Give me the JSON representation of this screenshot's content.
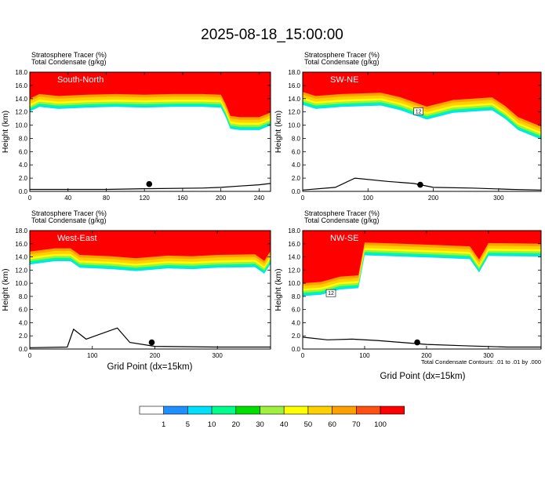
{
  "title": "2025-08-18_15:00:00",
  "panel_header": {
    "line1_name": "Stratosphere Tracer",
    "line1_unit": "(%)",
    "line2_name": "Total Condensate",
    "line2_unit": "(g/kg)"
  },
  "ylabel": "Height (km)",
  "xlabel": "Grid Point (dx=15km)",
  "contour_note": "Total Condensate Contours: .01 to .01 by .000",
  "colorbar": {
    "labels": [
      "1",
      "5",
      "10",
      "20",
      "30",
      "40",
      "50",
      "60",
      "70",
      "100"
    ],
    "colors": [
      "#ffffff",
      "#1e90ff",
      "#00e0ff",
      "#00ff8a",
      "#00e000",
      "#a0f040",
      "#ffff00",
      "#ffd000",
      "#ffa000",
      "#ff5010",
      "#ff0000"
    ]
  },
  "colors": {
    "tracer_high": "#ff0000",
    "terrain_line": "#000000",
    "site_marker": "#000000"
  },
  "chart_data": [
    {
      "type": "heatmap",
      "label": "South-North",
      "xlim": [
        0,
        252
      ],
      "ylim": [
        0,
        18
      ],
      "x_ticks": [
        0,
        40,
        80,
        120,
        160,
        200,
        240
      ],
      "y_ticks": [
        "0.0",
        "2.0",
        "4.0",
        "6.0",
        "8.0",
        "10.0",
        "12.0",
        "14.0",
        "16.0",
        "18.0"
      ],
      "tracer_base_km": [
        [
          0,
          13.6
        ],
        [
          10,
          14.3
        ],
        [
          30,
          14.0
        ],
        [
          60,
          14.2
        ],
        [
          90,
          14.3
        ],
        [
          120,
          14.2
        ],
        [
          150,
          14.3
        ],
        [
          180,
          14.3
        ],
        [
          200,
          14.2
        ],
        [
          205,
          12.8
        ],
        [
          210,
          11.0
        ],
        [
          220,
          10.8
        ],
        [
          240,
          10.8
        ],
        [
          252,
          11.5
        ]
      ],
      "terrain_km": [
        [
          0,
          0.3
        ],
        [
          20,
          0.3
        ],
        [
          40,
          0.3
        ],
        [
          80,
          0.3
        ],
        [
          120,
          0.4
        ],
        [
          180,
          0.5
        ],
        [
          200,
          0.6
        ],
        [
          220,
          0.8
        ],
        [
          240,
          1.0
        ],
        [
          252,
          1.2
        ]
      ],
      "site_marker": [
        125,
        1.1
      ],
      "dot_marker": "●"
    },
    {
      "type": "heatmap",
      "label": "SW-NE",
      "xlim": [
        0,
        365
      ],
      "ylim": [
        0,
        18
      ],
      "x_ticks": [
        0,
        100,
        200,
        300
      ],
      "y_ticks": [
        "0.0",
        "2.0",
        "4.0",
        "6.0",
        "8.0",
        "10.0",
        "12.0",
        "14.0",
        "16.0",
        "18.0"
      ],
      "tracer_base_km": [
        [
          0,
          14.6
        ],
        [
          20,
          14.0
        ],
        [
          60,
          14.3
        ],
        [
          120,
          14.5
        ],
        [
          150,
          13.8
        ],
        [
          190,
          12.4
        ],
        [
          230,
          13.4
        ],
        [
          290,
          13.8
        ],
        [
          310,
          12.5
        ],
        [
          330,
          10.8
        ],
        [
          365,
          9.4
        ]
      ],
      "terrain_km": [
        [
          0,
          0.2
        ],
        [
          50,
          0.6
        ],
        [
          80,
          2.0
        ],
        [
          130,
          1.5
        ],
        [
          170,
          1.2
        ],
        [
          200,
          0.6
        ],
        [
          260,
          0.5
        ],
        [
          320,
          0.3
        ],
        [
          365,
          0.2
        ]
      ],
      "site_marker": [
        180,
        1.0
      ],
      "box_label": "12"
    },
    {
      "type": "heatmap",
      "label": "West-East",
      "xlim": [
        0,
        385
      ],
      "ylim": [
        0,
        18
      ],
      "x_ticks": [
        0,
        100,
        200,
        300
      ],
      "y_ticks": [
        "0.0",
        "2.0",
        "4.0",
        "6.0",
        "8.0",
        "10.0",
        "12.0",
        "14.0",
        "16.0",
        "18.0"
      ],
      "tracer_base_km": [
        [
          0,
          14.4
        ],
        [
          40,
          14.9
        ],
        [
          65,
          14.9
        ],
        [
          80,
          13.9
        ],
        [
          130,
          13.7
        ],
        [
          170,
          13.4
        ],
        [
          220,
          13.8
        ],
        [
          260,
          13.7
        ],
        [
          300,
          13.9
        ],
        [
          360,
          14.0
        ],
        [
          375,
          13.0
        ],
        [
          385,
          14.5
        ]
      ],
      "terrain_km": [
        [
          0,
          0.2
        ],
        [
          60,
          0.3
        ],
        [
          70,
          3.0
        ],
        [
          90,
          1.5
        ],
        [
          140,
          3.2
        ],
        [
          160,
          1.0
        ],
        [
          200,
          0.4
        ],
        [
          300,
          0.3
        ],
        [
          385,
          0.3
        ]
      ],
      "site_marker": [
        195,
        1.0
      ]
    },
    {
      "type": "heatmap",
      "label": "NW-SE",
      "xlim": [
        0,
        385
      ],
      "ylim": [
        0,
        18
      ],
      "x_ticks": [
        0,
        100,
        200,
        300
      ],
      "y_ticks": [
        "0.0",
        "2.0",
        "4.0",
        "6.0",
        "8.0",
        "10.0",
        "12.0",
        "14.0",
        "16.0",
        "18.0"
      ],
      "tracer_base_km": [
        [
          0,
          9.6
        ],
        [
          30,
          9.8
        ],
        [
          60,
          10.6
        ],
        [
          90,
          10.8
        ],
        [
          100,
          15.8
        ],
        [
          160,
          15.6
        ],
        [
          220,
          15.4
        ],
        [
          270,
          15.2
        ],
        [
          285,
          13.2
        ],
        [
          300,
          15.7
        ],
        [
          385,
          15.6
        ]
      ],
      "terrain_km": [
        [
          0,
          1.8
        ],
        [
          40,
          1.4
        ],
        [
          80,
          1.5
        ],
        [
          120,
          1.3
        ],
        [
          160,
          1.0
        ],
        [
          200,
          0.7
        ],
        [
          260,
          0.5
        ],
        [
          330,
          0.3
        ],
        [
          385,
          0.3
        ]
      ],
      "site_marker": [
        185,
        1.0
      ],
      "box_label": "12"
    }
  ]
}
